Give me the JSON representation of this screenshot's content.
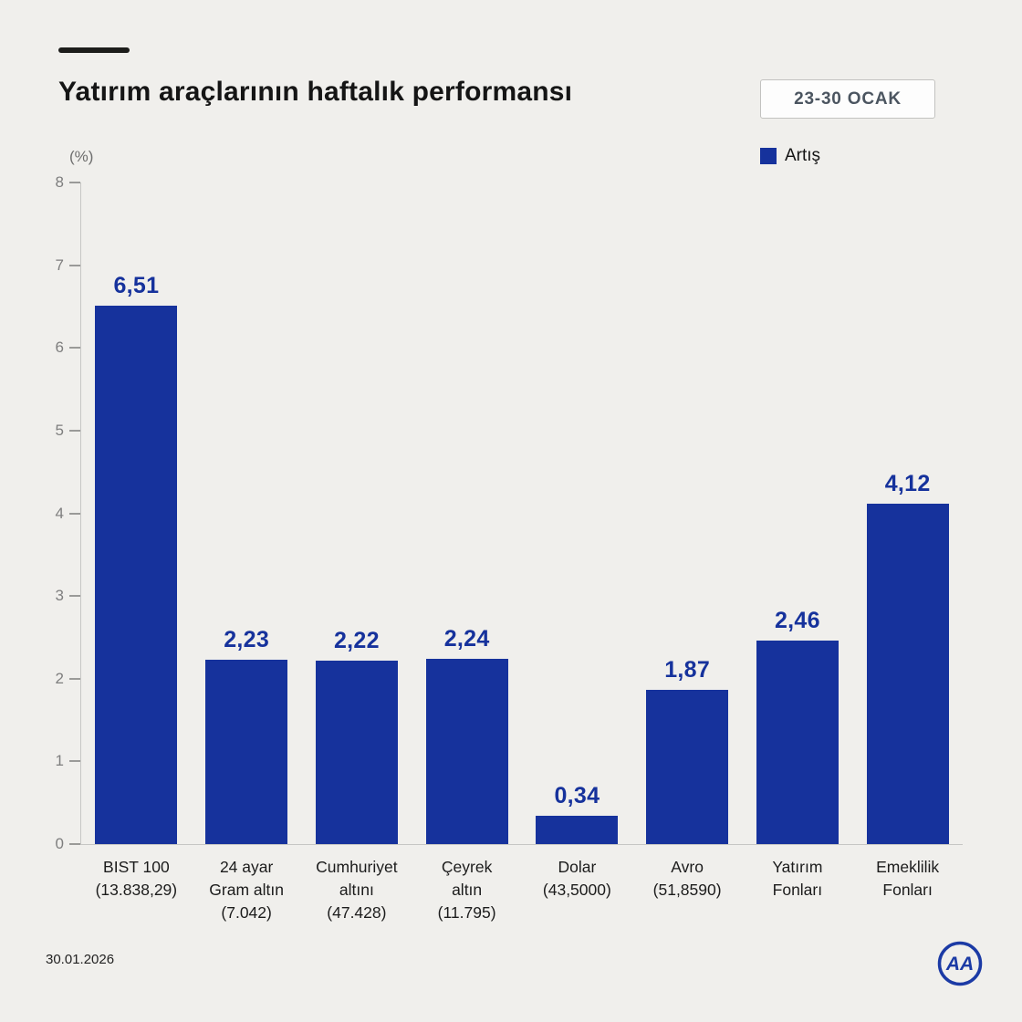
{
  "header": {
    "title": "Yatırım araçlarının haftalık performansı",
    "date_range": "23-30 OCAK"
  },
  "legend": {
    "label": "Artış",
    "color": "#16329c"
  },
  "footer": {
    "date": "30.01.2026",
    "logo_text": "AA"
  },
  "chart_data": {
    "type": "bar",
    "title": "Yatırım araçlarının haftalık performansı",
    "unit_label": "(%)",
    "ylim": [
      0,
      8
    ],
    "yticks": [
      0,
      1,
      2,
      3,
      4,
      5,
      6,
      7,
      8
    ],
    "grid": false,
    "legend_position": "top-right",
    "bar_color": "#16329c",
    "value_color": "#16329c",
    "categories": [
      {
        "lines": [
          "BIST 100",
          "(13.838,29)"
        ]
      },
      {
        "lines": [
          "24 ayar",
          "Gram altın",
          "(7.042)"
        ]
      },
      {
        "lines": [
          "Cumhuriyet",
          "altını",
          "(47.428)"
        ]
      },
      {
        "lines": [
          "Çeyrek",
          "altın",
          "(11.795)"
        ]
      },
      {
        "lines": [
          "Dolar",
          "(43,5000)"
        ]
      },
      {
        "lines": [
          "Avro",
          "(51,8590)"
        ]
      },
      {
        "lines": [
          "Yatırım",
          "Fonları"
        ]
      },
      {
        "lines": [
          "Emeklilik",
          "Fonları"
        ]
      }
    ],
    "values": [
      6.51,
      2.23,
      2.22,
      2.24,
      0.34,
      1.87,
      2.46,
      4.12
    ],
    "value_labels": [
      "6,51",
      "2,23",
      "2,22",
      "2,24",
      "0,34",
      "1,87",
      "2,46",
      "4,12"
    ]
  }
}
